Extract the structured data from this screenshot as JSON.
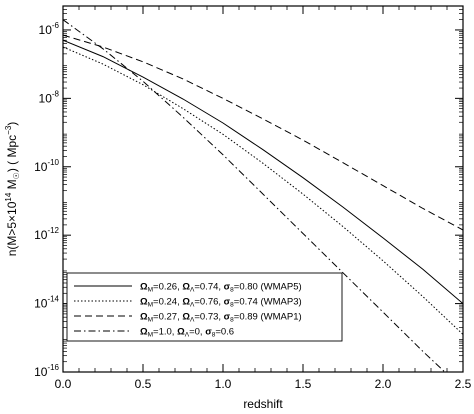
{
  "chart_data": {
    "type": "line",
    "title": "",
    "xlabel": "redshift",
    "ylabel": "n(M>5×10¹⁴ M☉) ( Mpc⁻³)",
    "xlim": [
      0.0,
      2.5
    ],
    "ylim_log10": [
      -16,
      -5.3
    ],
    "yscale": "log",
    "x_ticks": [
      {
        "value": 0.0,
        "label": "0.0"
      },
      {
        "value": 0.5,
        "label": "0.5"
      },
      {
        "value": 1.0,
        "label": "1.0"
      },
      {
        "value": 1.5,
        "label": "1.5"
      },
      {
        "value": 2.0,
        "label": "2.0"
      },
      {
        "value": 2.5,
        "label": "2.5"
      }
    ],
    "y_ticks": [
      {
        "value": -6,
        "base": "10",
        "exp": "-6"
      },
      {
        "value": -8,
        "base": "10",
        "exp": "-8"
      },
      {
        "value": -10,
        "base": "10",
        "exp": "-10"
      },
      {
        "value": -12,
        "base": "10",
        "exp": "-12"
      },
      {
        "value": -14,
        "base": "10",
        "exp": "-14"
      },
      {
        "value": -16,
        "base": "10",
        "exp": "-16"
      }
    ],
    "legend_placement": "bottom-left",
    "series": [
      {
        "name": "Ω_M=0.26, Ω_Λ=0.74, σ_8=0.80 (WMAP5)",
        "label_parts": [
          [
            "Ω",
            "M",
            "=0.26, "
          ],
          [
            "Ω",
            "Λ",
            "=0.74, "
          ],
          [
            "σ",
            "8",
            "=0.80 (WMAP5)"
          ]
        ],
        "dash": "none",
        "x": [
          0.0,
          0.25,
          0.5,
          0.75,
          1.0,
          1.25,
          1.5,
          1.75,
          2.0,
          2.25,
          2.5
        ],
        "log10_y": [
          -6.3,
          -6.78,
          -7.38,
          -8.02,
          -8.72,
          -9.5,
          -10.32,
          -11.18,
          -12.08,
          -13.0,
          -14.0
        ]
      },
      {
        "name": "Ω_M=0.24, Ω_Λ=0.76, σ_8=0.74 (WMAP3)",
        "label_parts": [
          [
            "Ω",
            "M",
            "=0.24, "
          ],
          [
            "Ω",
            "Λ",
            "=0.76, "
          ],
          [
            "σ",
            "8",
            "=0.74 (WMAP3)"
          ]
        ],
        "dash": "1.5,2",
        "x": [
          0.0,
          0.25,
          0.5,
          0.75,
          1.0,
          1.25,
          1.5,
          1.75,
          2.0,
          2.25,
          2.5
        ],
        "log10_y": [
          -6.5,
          -7.0,
          -7.6,
          -8.3,
          -9.05,
          -9.9,
          -10.8,
          -11.75,
          -12.75,
          -13.8,
          -14.9
        ]
      },
      {
        "name": "Ω_M=0.27, Ω_Λ=0.73, σ_8=0.89 (WMAP1)",
        "label_parts": [
          [
            "Ω",
            "M",
            "=0.27, "
          ],
          [
            "Ω",
            "Λ",
            "=0.73, "
          ],
          [
            "σ",
            "8",
            "=0.89 (WMAP1)"
          ]
        ],
        "dash": "7,4",
        "x": [
          0.0,
          0.25,
          0.5,
          0.75,
          1.0,
          1.25,
          1.5,
          1.75,
          2.0,
          2.25,
          2.5
        ],
        "log10_y": [
          -6.15,
          -6.5,
          -6.93,
          -7.43,
          -8.0,
          -8.6,
          -9.22,
          -9.88,
          -10.55,
          -11.22,
          -11.85
        ]
      },
      {
        "name": "Ω_M=1.0, Ω_Λ=0, σ_8=0.6",
        "label_parts": [
          [
            "Ω",
            "M",
            "=1.0, "
          ],
          [
            "Ω",
            "Λ",
            "=0, "
          ],
          [
            "σ",
            "8",
            "=0.6"
          ]
        ],
        "dash": "7,3,1.5,3",
        "x": [
          0.0,
          0.25,
          0.5,
          0.75,
          1.0,
          1.25,
          1.5,
          1.75,
          2.0,
          2.25,
          2.5
        ],
        "log10_y": [
          -5.7,
          -6.55,
          -7.5,
          -8.55,
          -9.65,
          -10.8,
          -11.95,
          -13.1,
          -14.25,
          -15.4,
          -16.5
        ]
      }
    ]
  }
}
